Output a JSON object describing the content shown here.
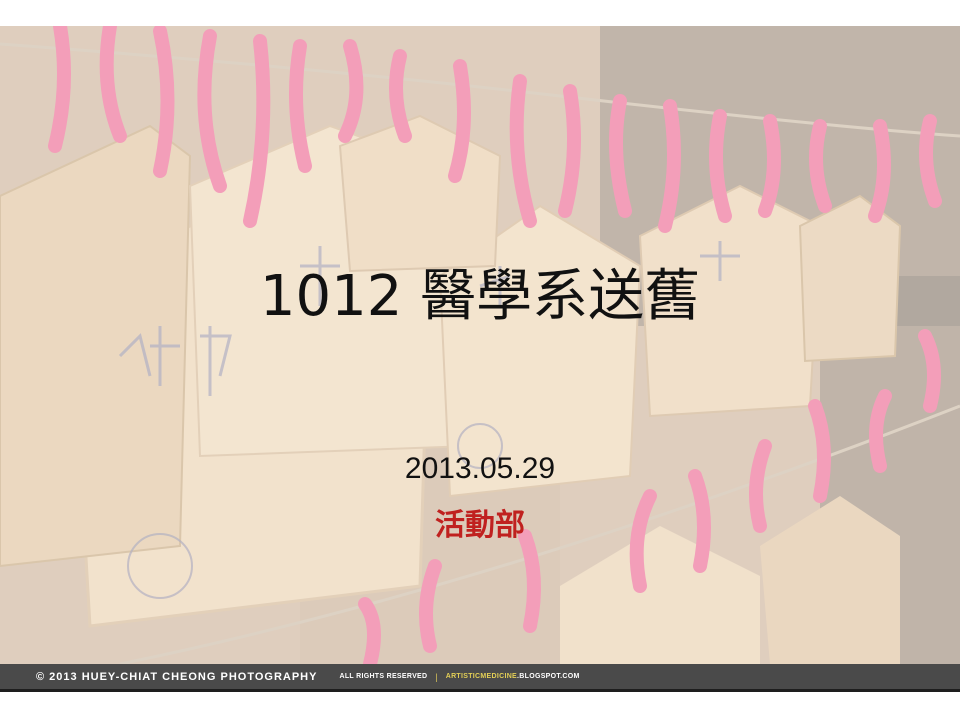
{
  "slide": {
    "title": "1012 醫學系送舊",
    "date": "2013.05.29",
    "department": "活動部"
  },
  "photo_footer": {
    "copyright": "©  2013  HUEY-CHIAT  CHEONG  PHOTOGRAPHY",
    "rights": "ALL RIGHTS RESERVED",
    "separator": "|",
    "blog_highlight": "ARTISTICMEDICINE",
    "blog_rest": ".BLOGSPOT.COM"
  },
  "colors": {
    "title_text": "#111111",
    "department_text": "#c0211f",
    "footer_bg": "#4a4a4a",
    "yarn": "#e8467a"
  }
}
